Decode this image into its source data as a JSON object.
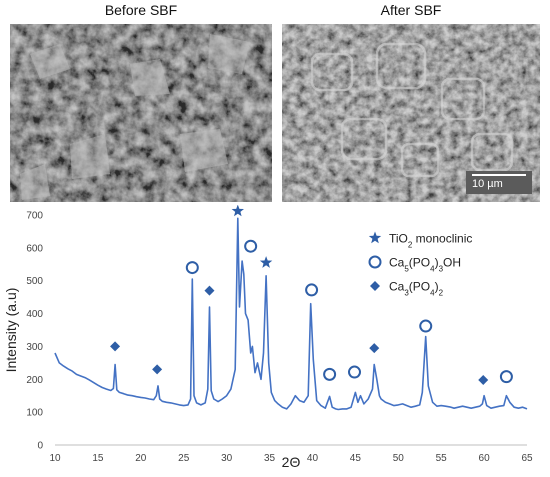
{
  "panels": {
    "before": {
      "title": "Before SBF"
    },
    "after": {
      "title": "After SBF",
      "scale_bar": "10 µm"
    }
  },
  "colors": {
    "series": "#4472C4",
    "marker": "#2E5EA6"
  },
  "chart_data": {
    "type": "line",
    "xlabel": "2Θ",
    "ylabel": "Intensity (a.u)",
    "xlim": [
      10,
      65
    ],
    "ylim": [
      0,
      700
    ],
    "xticks": [
      10,
      15,
      20,
      25,
      30,
      35,
      40,
      45,
      50,
      55,
      60,
      65
    ],
    "yticks": [
      0,
      100,
      200,
      300,
      400,
      500,
      600,
      700
    ],
    "grid": false,
    "legend_position": "top-right",
    "series": [
      {
        "name": "",
        "points": [
          [
            10,
            280
          ],
          [
            10.5,
            250
          ],
          [
            11,
            240
          ],
          [
            11.5,
            232
          ],
          [
            12,
            225
          ],
          [
            12.5,
            215
          ],
          [
            13,
            210
          ],
          [
            13.5,
            205
          ],
          [
            14,
            198
          ],
          [
            14.5,
            190
          ],
          [
            15,
            182
          ],
          [
            15.5,
            175
          ],
          [
            16,
            170
          ],
          [
            16.5,
            166
          ],
          [
            16.8,
            172
          ],
          [
            17,
            245
          ],
          [
            17.2,
            168
          ],
          [
            17.5,
            160
          ],
          [
            18,
            156
          ],
          [
            18.5,
            152
          ],
          [
            19,
            150
          ],
          [
            19.5,
            147
          ],
          [
            20,
            145
          ],
          [
            20.5,
            143
          ],
          [
            21,
            140
          ],
          [
            21.5,
            138
          ],
          [
            21.8,
            150
          ],
          [
            22,
            180
          ],
          [
            22.2,
            140
          ],
          [
            22.5,
            133
          ],
          [
            23,
            130
          ],
          [
            23.5,
            128
          ],
          [
            24,
            125
          ],
          [
            24.5,
            122
          ],
          [
            25,
            120
          ],
          [
            25.5,
            122
          ],
          [
            25.8,
            140
          ],
          [
            26,
            505
          ],
          [
            26.2,
            150
          ],
          [
            26.5,
            128
          ],
          [
            27,
            122
          ],
          [
            27.5,
            128
          ],
          [
            27.8,
            170
          ],
          [
            28,
            420
          ],
          [
            28.2,
            165
          ],
          [
            28.5,
            140
          ],
          [
            29,
            132
          ],
          [
            29.5,
            140
          ],
          [
            30,
            150
          ],
          [
            30.5,
            170
          ],
          [
            31,
            230
          ],
          [
            31.3,
            690
          ],
          [
            31.5,
            420
          ],
          [
            31.8,
            560
          ],
          [
            32,
            520
          ],
          [
            32.2,
            400
          ],
          [
            32.5,
            380
          ],
          [
            32.8,
            280
          ],
          [
            33,
            300
          ],
          [
            33.3,
            220
          ],
          [
            33.6,
            250
          ],
          [
            34,
            200
          ],
          [
            34.3,
            280
          ],
          [
            34.6,
            515
          ],
          [
            34.9,
            250
          ],
          [
            35.2,
            160
          ],
          [
            35.6,
            135
          ],
          [
            36,
            125
          ],
          [
            36.5,
            115
          ],
          [
            37,
            110
          ],
          [
            37.5,
            125
          ],
          [
            38,
            150
          ],
          [
            38.5,
            135
          ],
          [
            39,
            130
          ],
          [
            39.5,
            150
          ],
          [
            39.8,
            430
          ],
          [
            40.1,
            260
          ],
          [
            40.5,
            135
          ],
          [
            41,
            120
          ],
          [
            41.5,
            112
          ],
          [
            42,
            148
          ],
          [
            42.3,
            115
          ],
          [
            42.7,
            110
          ],
          [
            43,
            108
          ],
          [
            43.5,
            110
          ],
          [
            44,
            110
          ],
          [
            44.5,
            115
          ],
          [
            45,
            160
          ],
          [
            45.3,
            130
          ],
          [
            45.6,
            150
          ],
          [
            46,
            125
          ],
          [
            46.5,
            140
          ],
          [
            47,
            170
          ],
          [
            47.2,
            245
          ],
          [
            47.5,
            200
          ],
          [
            47.8,
            150
          ],
          [
            48,
            140
          ],
          [
            48.5,
            130
          ],
          [
            49,
            125
          ],
          [
            49.5,
            120
          ],
          [
            50,
            122
          ],
          [
            50.5,
            125
          ],
          [
            51,
            120
          ],
          [
            51.5,
            115
          ],
          [
            52,
            118
          ],
          [
            52.5,
            122
          ],
          [
            52.8,
            160
          ],
          [
            53.2,
            330
          ],
          [
            53.5,
            180
          ],
          [
            54,
            130
          ],
          [
            54.5,
            118
          ],
          [
            55,
            120
          ],
          [
            55.5,
            118
          ],
          [
            56,
            116
          ],
          [
            56.5,
            112
          ],
          [
            57,
            115
          ],
          [
            57.5,
            118
          ],
          [
            58,
            115
          ],
          [
            58.5,
            112
          ],
          [
            59,
            115
          ],
          [
            59.5,
            118
          ],
          [
            59.8,
            125
          ],
          [
            60,
            150
          ],
          [
            60.3,
            120
          ],
          [
            60.8,
            112
          ],
          [
            61.3,
            115
          ],
          [
            61.8,
            118
          ],
          [
            62.3,
            120
          ],
          [
            62.6,
            150
          ],
          [
            63,
            130
          ],
          [
            63.5,
            115
          ],
          [
            64,
            112
          ],
          [
            64.5,
            115
          ],
          [
            65,
            110
          ]
        ]
      }
    ],
    "legend": [
      {
        "marker": "star",
        "label_main": "TiO",
        "label_sub": "2",
        "label_rest": " monoclinic"
      },
      {
        "marker": "circle",
        "label_html": "Ca5(PO4)3OH"
      },
      {
        "marker": "diamond",
        "label_html": "Ca3(PO4)2"
      }
    ],
    "peak_markers": [
      {
        "x": 17.0,
        "y": 300,
        "type": "diamond"
      },
      {
        "x": 21.9,
        "y": 230,
        "type": "diamond"
      },
      {
        "x": 26.0,
        "y": 540,
        "type": "circle"
      },
      {
        "x": 28.0,
        "y": 470,
        "type": "diamond"
      },
      {
        "x": 31.3,
        "y": 712,
        "type": "star"
      },
      {
        "x": 32.8,
        "y": 605,
        "type": "circle"
      },
      {
        "x": 34.6,
        "y": 555,
        "type": "star"
      },
      {
        "x": 39.9,
        "y": 472,
        "type": "circle"
      },
      {
        "x": 42.0,
        "y": 215,
        "type": "circle"
      },
      {
        "x": 44.9,
        "y": 222,
        "type": "circle"
      },
      {
        "x": 47.2,
        "y": 295,
        "type": "diamond"
      },
      {
        "x": 53.2,
        "y": 362,
        "type": "circle"
      },
      {
        "x": 59.9,
        "y": 198,
        "type": "diamond"
      },
      {
        "x": 62.6,
        "y": 208,
        "type": "circle"
      }
    ]
  }
}
